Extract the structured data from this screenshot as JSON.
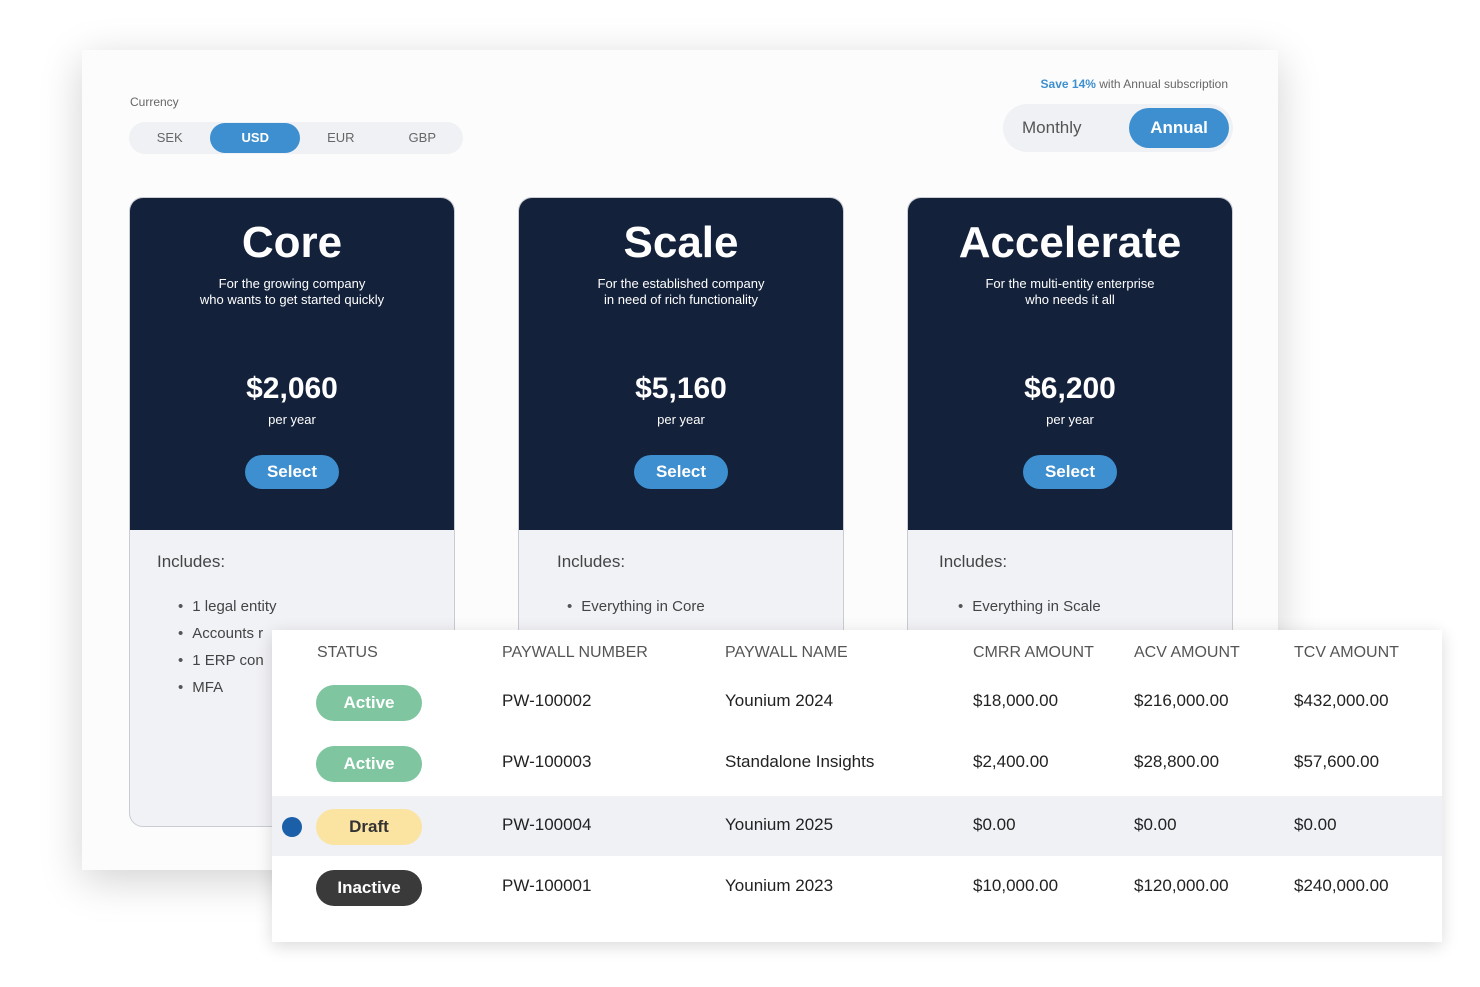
{
  "currency": {
    "label": "Currency",
    "options": [
      "SEK",
      "USD",
      "EUR",
      "GBP"
    ],
    "selected": "USD"
  },
  "billing": {
    "save_highlight": "Save 14%",
    "save_rest": " with Annual subscription",
    "monthly": "Monthly",
    "annual": "Annual",
    "selected": "Annual"
  },
  "plans": [
    {
      "name": "Core",
      "subtitle": "For the growing company\nwho wants to get started quickly",
      "price": "$2,060",
      "period": "per year",
      "button": "Select",
      "includes": "Includes:",
      "features": [
        "1 legal entity",
        "Accounts r",
        "1 ERP con",
        "MFA"
      ]
    },
    {
      "name": "Scale",
      "subtitle": "For the established company\nin need of rich functionality",
      "price": "$5,160",
      "period": "per year",
      "button": "Select",
      "includes": "Includes:",
      "features": [
        "Everything in Core"
      ]
    },
    {
      "name": "Accelerate",
      "subtitle": "For the multi-entity enterprise\nwho needs it all",
      "price": "$6,200",
      "period": "per year",
      "button": "Select",
      "includes": "Includes:",
      "features": [
        "Everything in Scale"
      ]
    }
  ],
  "table": {
    "headers": [
      "STATUS",
      "PAYWALL NUMBER",
      "PAYWALL NAME",
      "CMRR AMOUNT",
      "ACV AMOUNT",
      "TCV AMOUNT"
    ],
    "rows": [
      {
        "status": "Active",
        "number": "PW-100002",
        "name": "Younium 2024",
        "cmrr": "$18,000.00",
        "acv": "$216,000.00",
        "tcv": "$432,000.00"
      },
      {
        "status": "Active",
        "number": "PW-100003",
        "name": "Standalone Insights",
        "cmrr": "$2,400.00",
        "acv": "$28,800.00",
        "tcv": "$57,600.00"
      },
      {
        "status": "Draft",
        "number": "PW-100004",
        "name": "Younium 2025",
        "cmrr": "$0.00",
        "acv": "$0.00",
        "tcv": "$0.00"
      },
      {
        "status": "Inactive",
        "number": "PW-100001",
        "name": "Younium 2023",
        "cmrr": "$10,000.00",
        "acv": "$120,000.00",
        "tcv": "$240,000.00"
      }
    ]
  },
  "colors": {
    "accent": "#3e8fd0",
    "card_dark": "#13213a",
    "active": "#7fc5a0",
    "draft": "#fbe3a2",
    "inactive": "#3a3a3a"
  }
}
